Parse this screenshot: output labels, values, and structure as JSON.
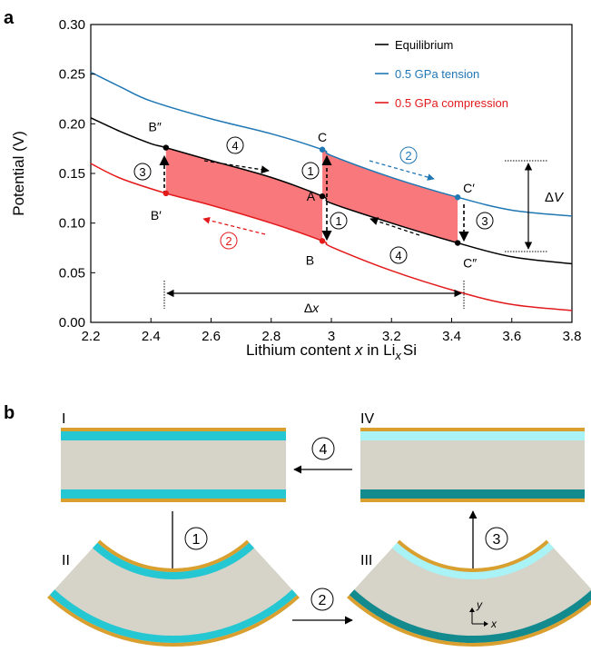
{
  "panel_labels": {
    "a": "a",
    "b": "b"
  },
  "chart_data": {
    "type": "line",
    "xlabel_parts": [
      "Lithium content ",
      "x",
      " in Li",
      "x",
      "Si"
    ],
    "ylabel": "Potential (V)",
    "xlim": [
      2.2,
      3.8
    ],
    "ylim": [
      0.0,
      0.3
    ],
    "xticks": [
      "2.2",
      "2.4",
      "2.6",
      "2.8",
      "3",
      "3.2",
      "3.4",
      "3.6",
      "3.8"
    ],
    "yticks": [
      "0.00",
      "0.05",
      "0.10",
      "0.15",
      "0.20",
      "0.25",
      "0.30"
    ],
    "legend_position": "top-right",
    "series": [
      {
        "name": "Equilibrium",
        "color": "#000000",
        "x": [
          2.2,
          2.3,
          2.4,
          2.45,
          2.6,
          2.8,
          2.97,
          3.0,
          3.2,
          3.42,
          3.6,
          3.8
        ],
        "y": [
          0.206,
          0.192,
          0.18,
          0.176,
          0.163,
          0.146,
          0.127,
          0.12,
          0.1,
          0.08,
          0.066,
          0.059
        ]
      },
      {
        "name": "0.5 GPa tension",
        "color": "#1f77b4",
        "x": [
          2.2,
          2.3,
          2.4,
          2.6,
          2.8,
          2.97,
          3.0,
          3.2,
          3.42,
          3.6,
          3.8
        ],
        "y": [
          0.252,
          0.237,
          0.223,
          0.205,
          0.19,
          0.174,
          0.168,
          0.146,
          0.126,
          0.113,
          0.107
        ]
      },
      {
        "name": "0.5 GPa compression",
        "color": "#e31a1c",
        "x": [
          2.2,
          2.3,
          2.45,
          2.6,
          2.8,
          2.97,
          3.0,
          3.2,
          3.42,
          3.6,
          3.8
        ],
        "y": [
          0.16,
          0.145,
          0.13,
          0.118,
          0.1,
          0.082,
          0.076,
          0.052,
          0.031,
          0.018,
          0.012
        ]
      }
    ],
    "points": [
      {
        "label": "B″",
        "x": 2.45,
        "y": 0.176,
        "color": "#000000"
      },
      {
        "label": "B′",
        "x": 2.45,
        "y": 0.13,
        "color": "#e31a1c"
      },
      {
        "label": "C",
        "x": 2.97,
        "y": 0.174,
        "color": "#1f77b4"
      },
      {
        "label": "A",
        "x": 2.97,
        "y": 0.127,
        "color": "#000000"
      },
      {
        "label": "B",
        "x": 2.97,
        "y": 0.082,
        "color": "#e31a1c"
      },
      {
        "label": "C′",
        "x": 3.42,
        "y": 0.126,
        "color": "#1f77b4"
      },
      {
        "label": "C″",
        "x": 3.42,
        "y": 0.08,
        "color": "#000000"
      }
    ],
    "step_labels": {
      "s1": "1",
      "s2": "2",
      "s3": "3",
      "s4": "4"
    },
    "delta_v_label": [
      "Δ",
      "V"
    ],
    "delta_x_label": [
      "Δ",
      "x"
    ],
    "shade_color": "#f8787b"
  },
  "panel_b": {
    "states": {
      "I": "I",
      "II": "II",
      "III": "III",
      "IV": "IV"
    },
    "axis_x": "x",
    "axis_y": "y",
    "colors": {
      "core": "#d6d3c8",
      "gold": "#d9a02f",
      "cyan": "#25c8d2",
      "light_cyan": "#a9f2f6",
      "dark_teal": "#138a8e"
    }
  }
}
